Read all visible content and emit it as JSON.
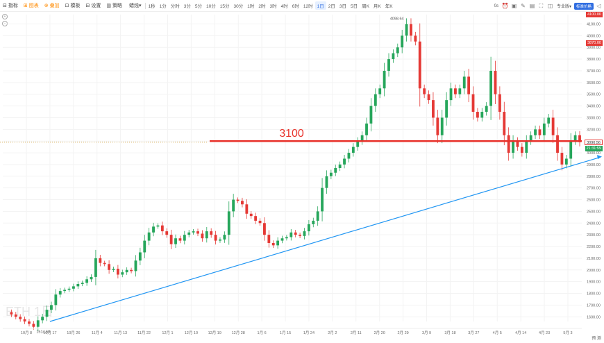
{
  "toolbar": {
    "left_items": [
      {
        "name": "indicators-button",
        "icon": "indicator-icon",
        "glyph": "⊟",
        "label": "指标",
        "orange": false
      },
      {
        "name": "layout-button",
        "icon": "layout-icon",
        "glyph": "⊞",
        "label": "图表",
        "orange": true
      },
      {
        "name": "compare-button",
        "icon": "compare-icon",
        "glyph": "⊕",
        "label": "叠加",
        "orange": true
      },
      {
        "name": "template-button",
        "icon": "template-icon",
        "glyph": "⊡",
        "label": "模板",
        "orange": false
      },
      {
        "name": "settings-button",
        "icon": "settings-icon",
        "glyph": "⊟",
        "label": "设置",
        "orange": false
      },
      {
        "name": "strategy-button",
        "icon": "strategy-icon",
        "glyph": "▥",
        "label": "策略",
        "orange": false
      },
      {
        "name": "chart-type-button",
        "icon": "candle-icon",
        "glyph": "",
        "label": "蜡烛▾",
        "orange": false
      }
    ],
    "intervals": [
      "1秒",
      "1分",
      "分时",
      "3分",
      "5分",
      "10分",
      "15分",
      "30分",
      "1时",
      "2时",
      "3时",
      "4时",
      "6时",
      "12时",
      "1日",
      "2日",
      "3日",
      "5日",
      "周K",
      "月K",
      "年K"
    ],
    "active_interval": "1日",
    "right": {
      "timer": "0s",
      "icons": [
        {
          "name": "alarm-icon",
          "glyph": "⏰"
        },
        {
          "name": "camera-icon",
          "glyph": "▣"
        },
        {
          "name": "drawing-icon",
          "glyph": "✎"
        },
        {
          "name": "save-icon",
          "glyph": "▤"
        },
        {
          "name": "fullscreen-icon",
          "glyph": "⛶"
        },
        {
          "name": "window-icon",
          "glyph": "◫"
        }
      ],
      "tv_select": "专业版▾",
      "mode_pill": "标准价格",
      "share_glyph": "◁"
    }
  },
  "chart_data": {
    "type": "candlestick",
    "y_axis": {
      "ticks": [
        1600,
        1700,
        1800,
        1900,
        2000,
        2100,
        2200,
        2300,
        2400,
        2500,
        2600,
        2700,
        2800,
        2900,
        3000,
        3100,
        3200,
        3300,
        3400,
        3500,
        3600,
        3700,
        3800,
        3900,
        4000,
        4100
      ],
      "tick_labels": [
        "1600.00",
        "1700.00",
        "1800.00",
        "1900.00",
        "2000.00",
        "2100.00",
        "2200.00",
        "2300.00",
        "2400.00",
        "2500.00",
        "2600.00",
        "2700.00",
        "2800.00",
        "2900.00",
        "3000.00",
        "3100.00",
        "3200.00",
        "3300.00",
        "3400.00",
        "3500.00",
        "3600.00",
        "3700.00",
        "3800.00",
        "3900.00",
        "4000.00",
        "4100.00"
      ],
      "range": [
        1560,
        4180
      ]
    },
    "x_axis": {
      "ticks": [
        "10月 8",
        "10月 17",
        "10月 26",
        "11月 4",
        "11月 13",
        "11月 22",
        "12月 1",
        "12月 10",
        "12月 19",
        "12月 28",
        "1月 6",
        "1月 15",
        "1月 24",
        "2月 2",
        "2月 11",
        "2月 20",
        "2月 29",
        "3月 9",
        "3月 18",
        "3月 27",
        "4月 5",
        "4月 14",
        "4月 23",
        "5月 3"
      ]
    },
    "price_path": [
      1640,
      1620,
      1600,
      1580,
      1560,
      1540,
      1514.5,
      1570,
      1600,
      1660,
      1700,
      1790,
      1820,
      1830,
      1840,
      1860,
      1880,
      1890,
      1920,
      1940,
      2100,
      2060,
      2050,
      2000,
      2010,
      1960,
      1980,
      2000,
      1990,
      2080,
      2150,
      2250,
      2320,
      2370,
      2380,
      2330,
      2300,
      2220,
      2270,
      2250,
      2300,
      2320,
      2330,
      2310,
      2270,
      2330,
      2300,
      2250,
      2260,
      2300,
      2500,
      2600,
      2590,
      2560,
      2480,
      2460,
      2420,
      2400,
      2300,
      2230,
      2210,
      2250,
      2270,
      2280,
      2320,
      2300,
      2290,
      2330,
      2390,
      2420,
      2500,
      2700,
      2800,
      2830,
      2870,
      2900,
      2950,
      3000,
      3050,
      3100,
      3150,
      3250,
      3400,
      3500,
      3550,
      3700,
      3800,
      3850,
      3900,
      4000,
      4098.64,
      4000,
      3950,
      3550,
      3500,
      3450,
      3300,
      3150,
      3300,
      3450,
      3550,
      3500,
      3550,
      3650,
      3500,
      3350,
      3300,
      3350,
      3400,
      3700,
      3500,
      3350,
      3150,
      3000,
      3100,
      3050,
      3000,
      3100,
      3150,
      3200,
      3150,
      3250,
      3300,
      3150,
      3000,
      2900,
      2950,
      3100,
      3150,
      3090.56
    ],
    "high_label": "4098.64",
    "low_label": "1514.50",
    "last_price": "3090.56",
    "countdown": "21:31:59",
    "red_tags": [
      "4100.00",
      "3870.00"
    ],
    "annotation": {
      "text": "3100",
      "level": 3100
    },
    "trendline_start": {
      "date": "10月 17",
      "value": 1560
    },
    "trendline_end": {
      "date": "5月 3",
      "value": 2880
    },
    "watermark": "ETH 1日",
    "colors": {
      "up": "#26a65b",
      "down": "#e53935",
      "hline": "#e8322b",
      "trend": "#2196f3",
      "dotted": "#d6a94b"
    }
  },
  "corner_label": "预 测"
}
